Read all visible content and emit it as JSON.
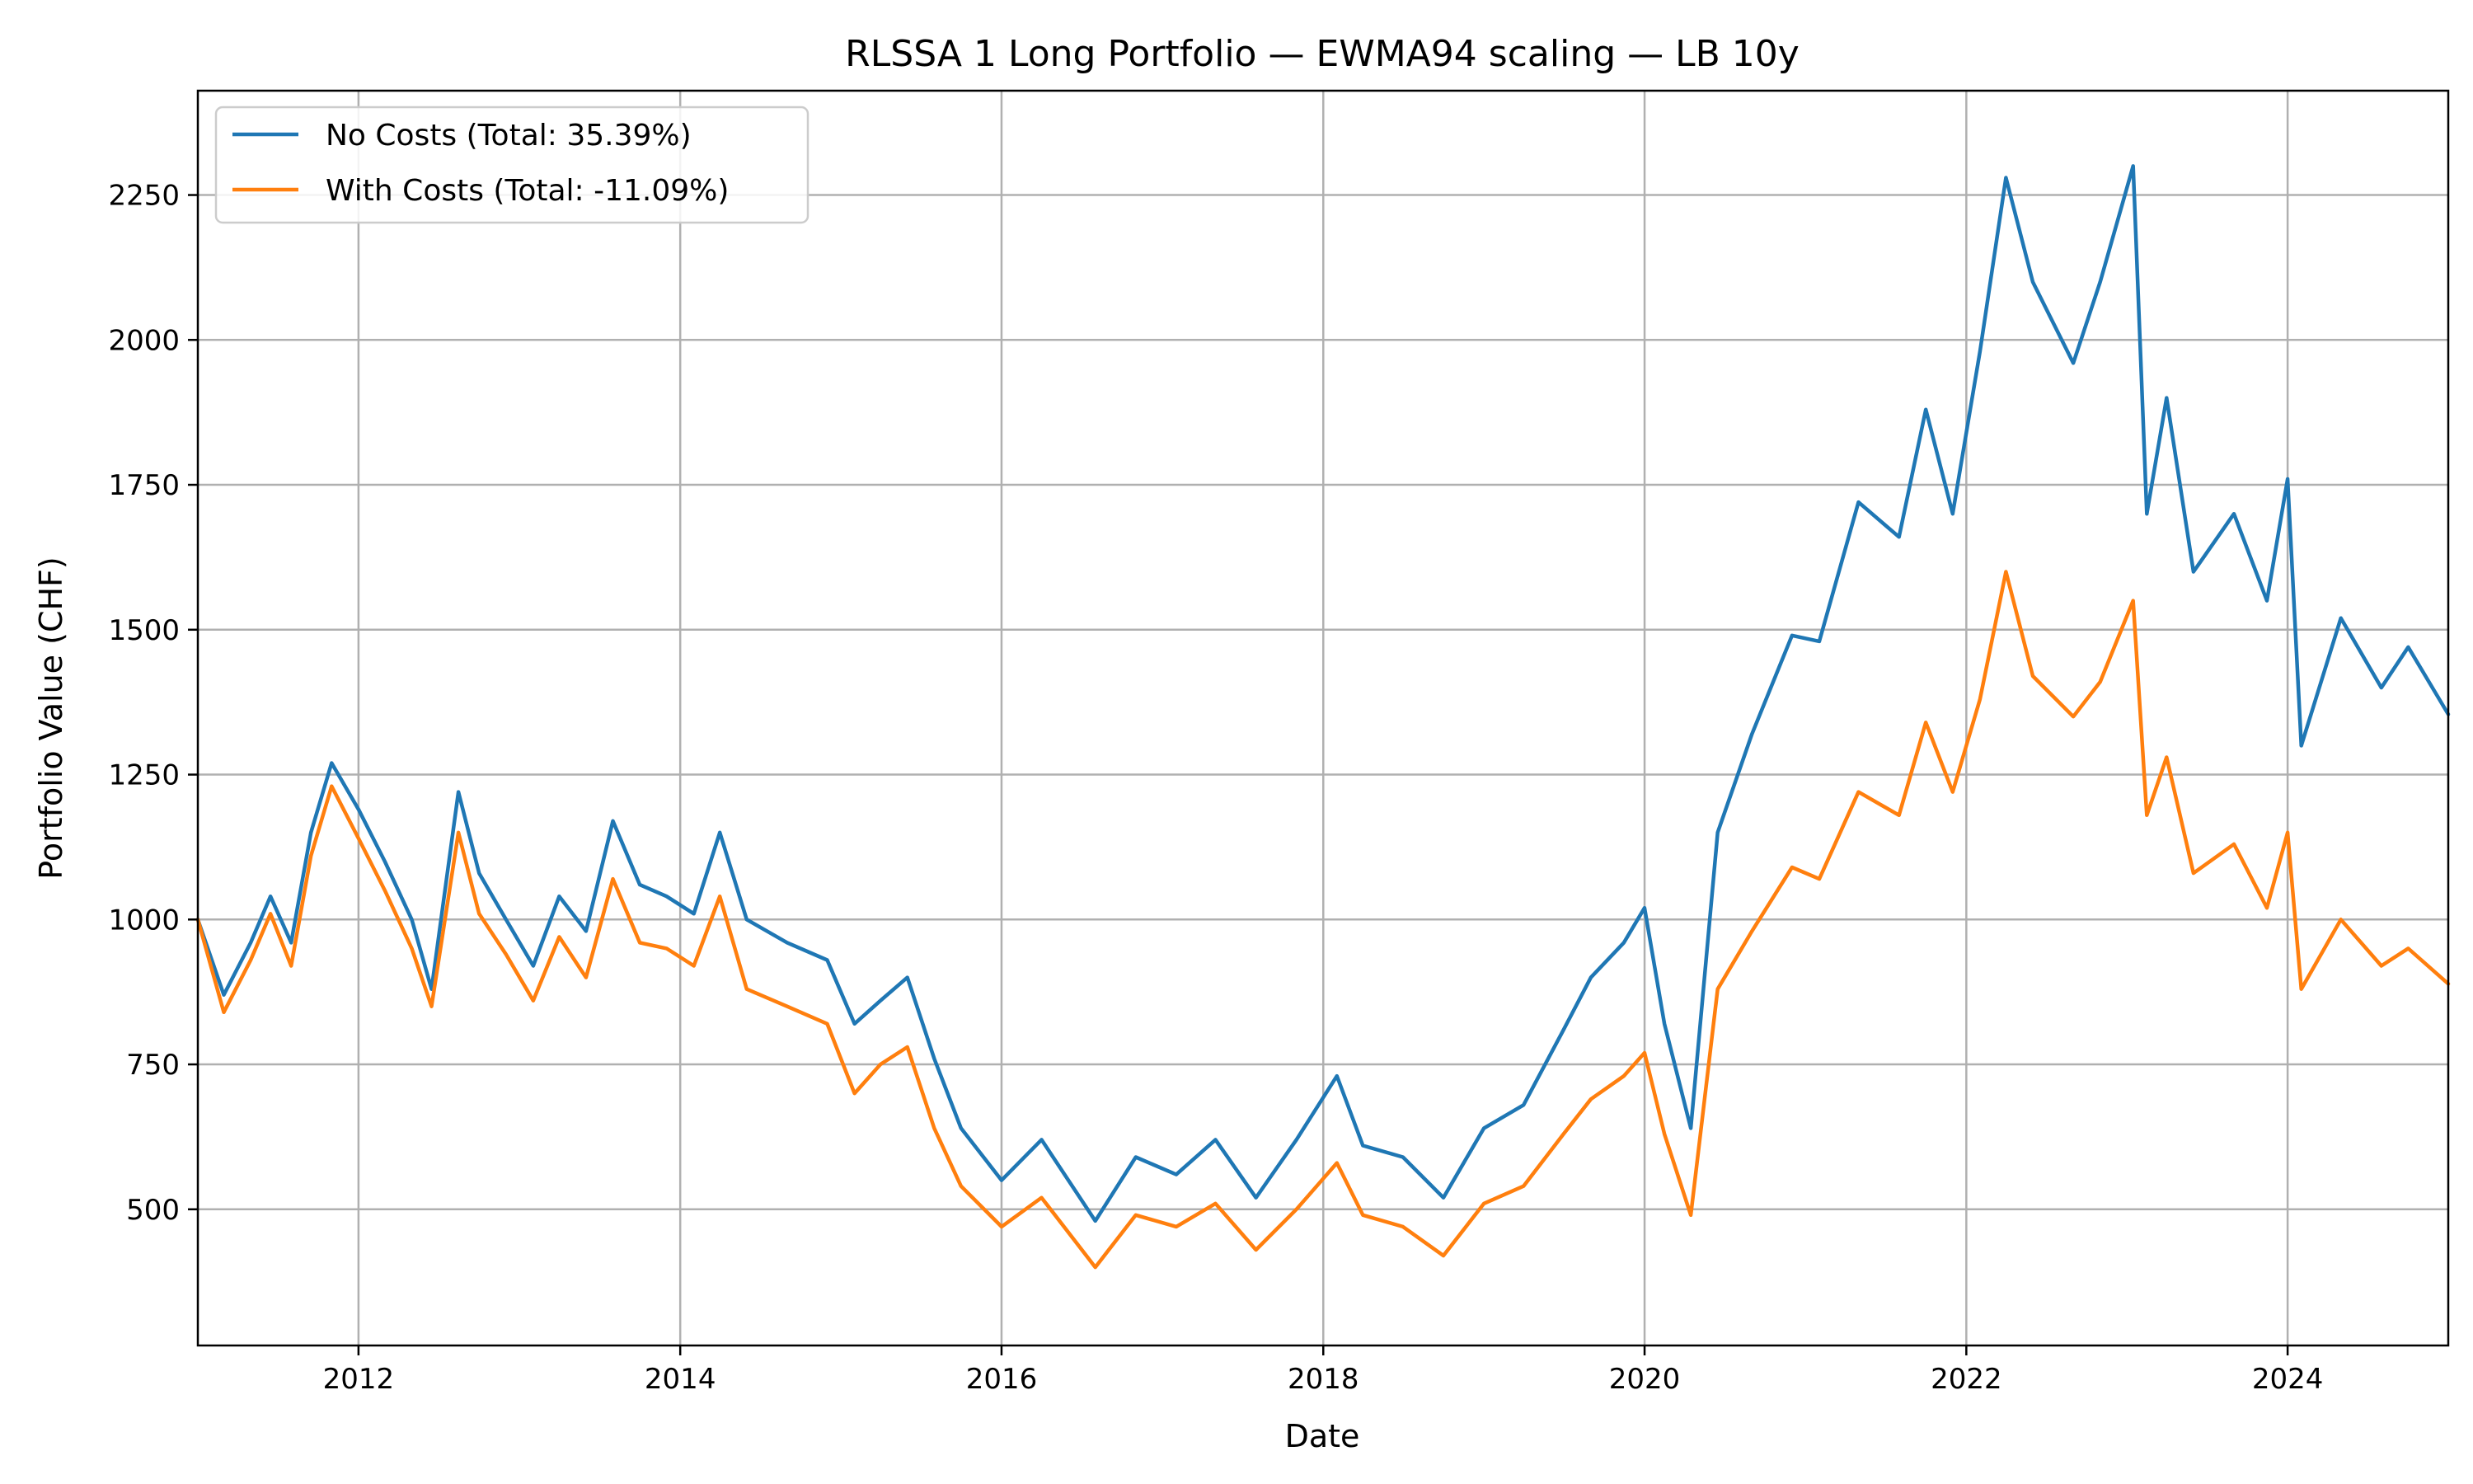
{
  "chart_data": {
    "type": "line",
    "title": "RLSSA 1 Long Portfolio — EWMA94 scaling — LB 10y",
    "xlabel": "Date",
    "ylabel": "Portfolio Value (CHF)",
    "xlim": [
      "2011-01-01",
      "2024-12-31"
    ],
    "ylim": [
      265,
      2430
    ],
    "x_ticks": [
      "2012",
      "2014",
      "2016",
      "2018",
      "2020",
      "2022",
      "2024"
    ],
    "y_ticks": [
      500,
      750,
      1000,
      1250,
      1500,
      1750,
      2000,
      2250
    ],
    "grid": true,
    "legend_position": "top-left",
    "series": [
      {
        "name": "No Costs (Total: 35.39%)",
        "color": "#1f77b4",
        "points": [
          [
            "2011-01-01",
            1000
          ],
          [
            "2011-03-01",
            870
          ],
          [
            "2011-05-01",
            960
          ],
          [
            "2011-06-15",
            1040
          ],
          [
            "2011-08-01",
            960
          ],
          [
            "2011-09-15",
            1150
          ],
          [
            "2011-11-01",
            1270
          ],
          [
            "2012-01-01",
            1190
          ],
          [
            "2012-03-01",
            1100
          ],
          [
            "2012-05-01",
            1000
          ],
          [
            "2012-06-15",
            880
          ],
          [
            "2012-08-15",
            1220
          ],
          [
            "2012-10-01",
            1080
          ],
          [
            "2012-12-01",
            1000
          ],
          [
            "2013-02-01",
            920
          ],
          [
            "2013-04-01",
            1040
          ],
          [
            "2013-06-01",
            980
          ],
          [
            "2013-08-01",
            1170
          ],
          [
            "2013-10-01",
            1060
          ],
          [
            "2013-12-01",
            1040
          ],
          [
            "2014-02-01",
            1010
          ],
          [
            "2014-04-01",
            1150
          ],
          [
            "2014-06-01",
            1000
          ],
          [
            "2014-09-01",
            960
          ],
          [
            "2014-12-01",
            930
          ],
          [
            "2015-02-01",
            820
          ],
          [
            "2015-04-01",
            860
          ],
          [
            "2015-06-01",
            900
          ],
          [
            "2015-08-01",
            760
          ],
          [
            "2015-10-01",
            640
          ],
          [
            "2016-01-01",
            550
          ],
          [
            "2016-04-01",
            620
          ],
          [
            "2016-08-01",
            480
          ],
          [
            "2016-11-01",
            590
          ],
          [
            "2017-02-01",
            560
          ],
          [
            "2017-05-01",
            620
          ],
          [
            "2017-08-01",
            520
          ],
          [
            "2017-11-01",
            620
          ],
          [
            "2018-02-01",
            730
          ],
          [
            "2018-04-01",
            610
          ],
          [
            "2018-07-01",
            590
          ],
          [
            "2018-10-01",
            520
          ],
          [
            "2019-01-01",
            640
          ],
          [
            "2019-04-01",
            680
          ],
          [
            "2019-07-01",
            810
          ],
          [
            "2019-09-01",
            900
          ],
          [
            "2019-11-15",
            960
          ],
          [
            "2020-01-01",
            1020
          ],
          [
            "2020-02-15",
            820
          ],
          [
            "2020-04-15",
            640
          ],
          [
            "2020-06-15",
            1150
          ],
          [
            "2020-09-01",
            1320
          ],
          [
            "2020-12-01",
            1490
          ],
          [
            "2021-02-01",
            1480
          ],
          [
            "2021-05-01",
            1720
          ],
          [
            "2021-08-01",
            1660
          ],
          [
            "2021-10-01",
            1880
          ],
          [
            "2021-12-01",
            1700
          ],
          [
            "2022-02-01",
            1980
          ],
          [
            "2022-04-01",
            2280
          ],
          [
            "2022-06-01",
            2100
          ],
          [
            "2022-09-01",
            1960
          ],
          [
            "2022-11-01",
            2100
          ],
          [
            "2023-01-15",
            2300
          ],
          [
            "2023-02-15",
            1700
          ],
          [
            "2023-04-01",
            1900
          ],
          [
            "2023-06-01",
            1600
          ],
          [
            "2023-09-01",
            1700
          ],
          [
            "2023-11-15",
            1550
          ],
          [
            "2024-01-01",
            1760
          ],
          [
            "2024-02-01",
            1300
          ],
          [
            "2024-05-01",
            1520
          ],
          [
            "2024-08-01",
            1400
          ],
          [
            "2024-10-01",
            1470
          ],
          [
            "2024-12-31",
            1354
          ]
        ]
      },
      {
        "name": "With Costs (Total: -11.09%)",
        "color": "#ff7f0e",
        "points": [
          [
            "2011-01-01",
            1000
          ],
          [
            "2011-03-01",
            840
          ],
          [
            "2011-05-01",
            930
          ],
          [
            "2011-06-15",
            1010
          ],
          [
            "2011-08-01",
            920
          ],
          [
            "2011-09-15",
            1110
          ],
          [
            "2011-11-01",
            1230
          ],
          [
            "2012-01-01",
            1140
          ],
          [
            "2012-03-01",
            1050
          ],
          [
            "2012-05-01",
            950
          ],
          [
            "2012-06-15",
            850
          ],
          [
            "2012-08-15",
            1150
          ],
          [
            "2012-10-01",
            1010
          ],
          [
            "2012-12-01",
            940
          ],
          [
            "2013-02-01",
            860
          ],
          [
            "2013-04-01",
            970
          ],
          [
            "2013-06-01",
            900
          ],
          [
            "2013-08-01",
            1070
          ],
          [
            "2013-10-01",
            960
          ],
          [
            "2013-12-01",
            950
          ],
          [
            "2014-02-01",
            920
          ],
          [
            "2014-04-01",
            1040
          ],
          [
            "2014-06-01",
            880
          ],
          [
            "2014-09-01",
            850
          ],
          [
            "2014-12-01",
            820
          ],
          [
            "2015-02-01",
            700
          ],
          [
            "2015-04-01",
            750
          ],
          [
            "2015-06-01",
            780
          ],
          [
            "2015-08-01",
            640
          ],
          [
            "2015-10-01",
            540
          ],
          [
            "2016-01-01",
            470
          ],
          [
            "2016-04-01",
            520
          ],
          [
            "2016-08-01",
            400
          ],
          [
            "2016-11-01",
            490
          ],
          [
            "2017-02-01",
            470
          ],
          [
            "2017-05-01",
            510
          ],
          [
            "2017-08-01",
            430
          ],
          [
            "2017-11-01",
            500
          ],
          [
            "2018-02-01",
            580
          ],
          [
            "2018-04-01",
            490
          ],
          [
            "2018-07-01",
            470
          ],
          [
            "2018-10-01",
            420
          ],
          [
            "2019-01-01",
            510
          ],
          [
            "2019-04-01",
            540
          ],
          [
            "2019-07-01",
            630
          ],
          [
            "2019-09-01",
            690
          ],
          [
            "2019-11-15",
            730
          ],
          [
            "2020-01-01",
            770
          ],
          [
            "2020-02-15",
            630
          ],
          [
            "2020-04-15",
            490
          ],
          [
            "2020-06-15",
            880
          ],
          [
            "2020-09-01",
            980
          ],
          [
            "2020-12-01",
            1090
          ],
          [
            "2021-02-01",
            1070
          ],
          [
            "2021-05-01",
            1220
          ],
          [
            "2021-08-01",
            1180
          ],
          [
            "2021-10-01",
            1340
          ],
          [
            "2021-12-01",
            1220
          ],
          [
            "2022-02-01",
            1380
          ],
          [
            "2022-04-01",
            1600
          ],
          [
            "2022-06-01",
            1420
          ],
          [
            "2022-09-01",
            1350
          ],
          [
            "2022-11-01",
            1410
          ],
          [
            "2023-01-15",
            1550
          ],
          [
            "2023-02-15",
            1180
          ],
          [
            "2023-04-01",
            1280
          ],
          [
            "2023-06-01",
            1080
          ],
          [
            "2023-09-01",
            1130
          ],
          [
            "2023-11-15",
            1020
          ],
          [
            "2024-01-01",
            1150
          ],
          [
            "2024-02-01",
            880
          ],
          [
            "2024-05-01",
            1000
          ],
          [
            "2024-08-01",
            920
          ],
          [
            "2024-10-01",
            950
          ],
          [
            "2024-12-31",
            889
          ]
        ]
      }
    ]
  }
}
